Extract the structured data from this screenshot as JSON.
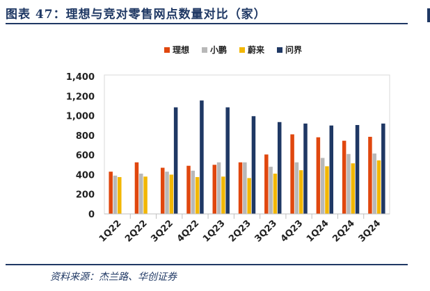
{
  "title": "图表 47：理想与竞对零售网点数量对比（家）",
  "source": "资料来源：杰兰路、华创证券",
  "chart_data": {
    "type": "bar",
    "categories": [
      "1Q22",
      "2Q22",
      "3Q22",
      "4Q22",
      "1Q23",
      "2Q23",
      "3Q23",
      "4Q23",
      "1Q24",
      "2Q24",
      "3Q24"
    ],
    "series": [
      {
        "name": "理想",
        "color": "#e0470e",
        "values": [
          430,
          525,
          470,
          490,
          500,
          525,
          605,
          810,
          780,
          745,
          785
        ]
      },
      {
        "name": "小鹏",
        "color": "#b8b8b8",
        "values": [
          390,
          410,
          430,
          440,
          525,
          525,
          480,
          525,
          570,
          610,
          615
        ]
      },
      {
        "name": "蔚来",
        "color": "#f2b705",
        "values": [
          375,
          380,
          400,
          375,
          380,
          365,
          410,
          445,
          485,
          515,
          545
        ]
      },
      {
        "name": "问界",
        "color": "#1f3864",
        "values": [
          null,
          null,
          1085,
          1155,
          1085,
          995,
          935,
          920,
          900,
          905,
          920
        ]
      }
    ],
    "y_ticks": [
      "0",
      "200",
      "400",
      "600",
      "800",
      "1,000",
      "1,200",
      "1,400"
    ],
    "ylim": [
      0,
      1400
    ],
    "legend_position": "top-center",
    "grid": false
  }
}
